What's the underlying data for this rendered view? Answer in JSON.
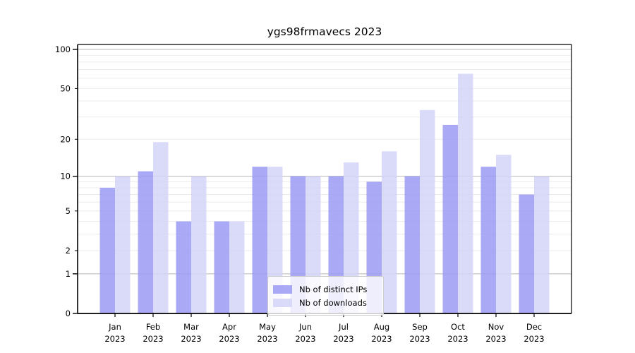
{
  "chart_data": {
    "type": "bar",
    "title": "ygs98frmavecs 2023",
    "categories": [
      "Jan",
      "Feb",
      "Mar",
      "Apr",
      "May",
      "Jun",
      "Jul",
      "Aug",
      "Sep",
      "Oct",
      "Nov",
      "Dec"
    ],
    "year_label": "2023",
    "series": [
      {
        "name": "Nb of distinct IPs",
        "color": "#9a9af5",
        "values": [
          8,
          11,
          4,
          4,
          12,
          10,
          10,
          9,
          10,
          26,
          12,
          7
        ]
      },
      {
        "name": "Nb of downloads",
        "color": "#d4d4f8",
        "values": [
          10,
          19,
          10,
          4,
          12,
          10,
          13,
          16,
          34,
          65,
          15,
          10
        ]
      }
    ],
    "yscale": "log1p",
    "ytick_labels": [
      100,
      50,
      20,
      10,
      5,
      2,
      1,
      0
    ],
    "minor_gridlines": [
      2,
      3,
      4,
      5,
      6,
      7,
      8,
      9,
      20,
      30,
      40,
      50,
      60,
      70,
      80,
      90
    ],
    "major_gridlines": [
      1,
      10,
      100
    ],
    "ylim": [
      0,
      109
    ],
    "grid": "on",
    "legend_position": "lower center",
    "colors": {
      "major_grid": "#b5b5b5",
      "minor_grid": "#ebebeb",
      "spine": "#000000",
      "text": "#000000"
    }
  }
}
